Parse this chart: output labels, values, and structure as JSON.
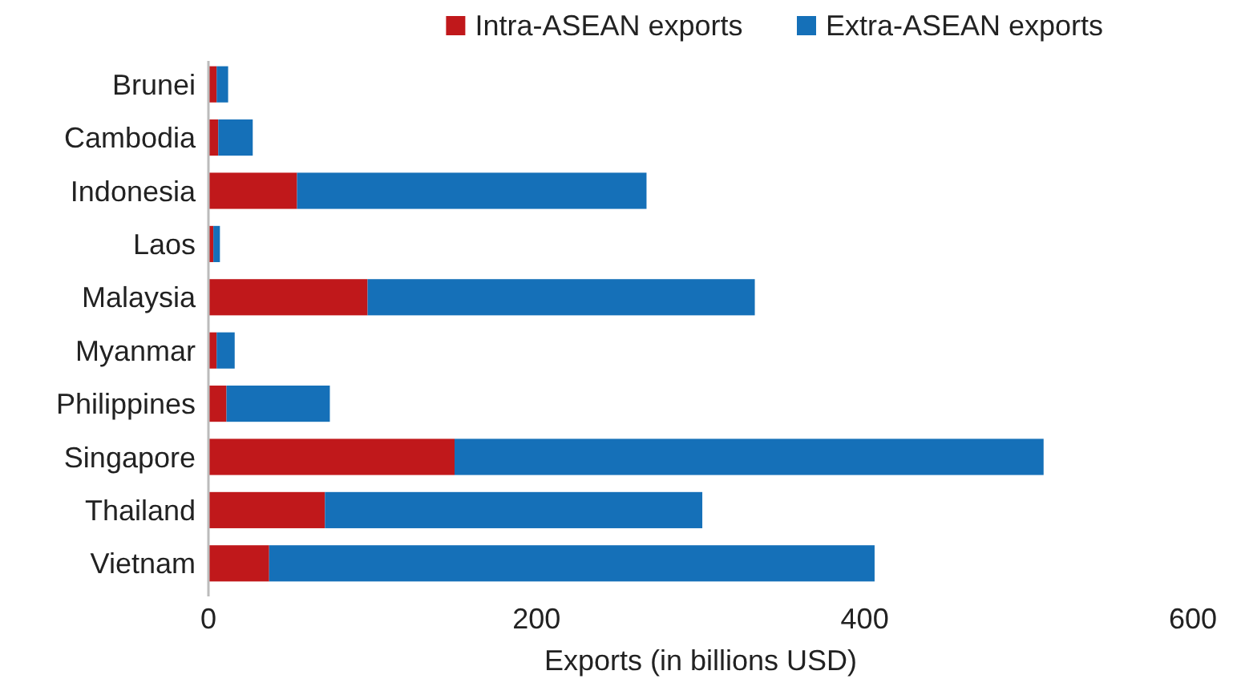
{
  "chart_data": {
    "type": "bar",
    "orientation": "horizontal",
    "stacked": true,
    "xlabel": "Exports (in billions USD)",
    "categories": [
      "Brunei",
      "Cambodia",
      "Indonesia",
      "Laos",
      "Malaysia",
      "Myanmar",
      "Philippines",
      "Singapore",
      "Thailand",
      "Vietnam"
    ],
    "series": [
      {
        "name": "Intra-ASEAN exports",
        "color": "#c0181b",
        "values": [
          5,
          6,
          54,
          3,
          97,
          5,
          11,
          150,
          71,
          37
        ]
      },
      {
        "name": "Extra-ASEAN exports",
        "color": "#1570b8",
        "values": [
          7,
          21,
          213,
          4,
          236,
          11,
          63,
          359,
          230,
          369
        ]
      }
    ],
    "xlim": [
      0,
      600
    ],
    "xticks": [
      0,
      200,
      400,
      600
    ],
    "legend": "top",
    "grid": false
  }
}
